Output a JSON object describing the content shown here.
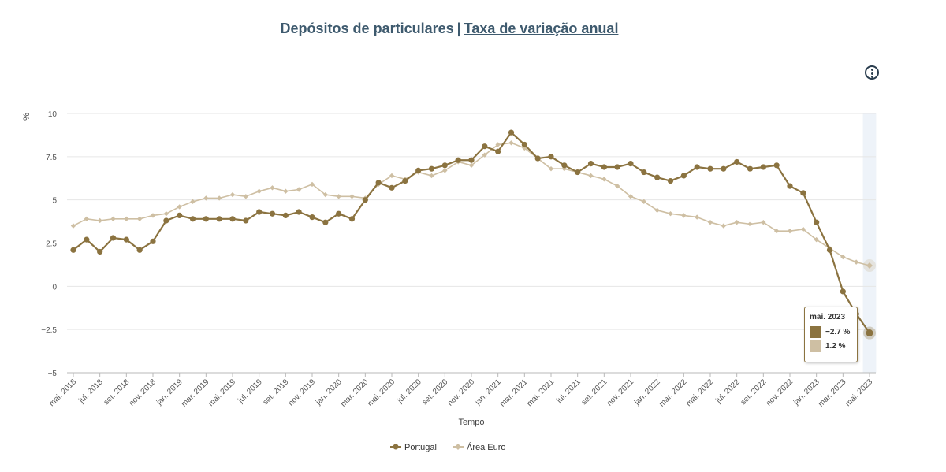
{
  "header": {
    "title_main": "Depósitos de particulares",
    "separator": "|",
    "title_link": "Taxa de variação anual"
  },
  "colors": {
    "portugal": "#8b7340",
    "area_euro": "#cebfa3",
    "title": "#3e5a6e",
    "highlight_band": "#eef3f9"
  },
  "tooltip": {
    "date": "mai. 2023",
    "portugal_value": "−2.7 %",
    "area_euro_value": "1.2 %"
  },
  "chart_data": {
    "type": "line",
    "ylabel": "%",
    "xlabel": "Tempo",
    "ylim": [
      -5,
      10
    ],
    "y_ticks": [
      10,
      7.5,
      5,
      2.5,
      0,
      -2.5,
      -5
    ],
    "y_tick_labels": [
      "10",
      "7.5",
      "5",
      "2.5",
      "0",
      "−2.5",
      "−5"
    ],
    "x_tick_labels": [
      "mai. 2018",
      "jul. 2018",
      "set. 2018",
      "nov. 2018",
      "jan. 2019",
      "mar. 2019",
      "mai. 2019",
      "jul. 2019",
      "set. 2019",
      "nov. 2019",
      "jan. 2020",
      "mar. 2020",
      "mai. 2020",
      "jul. 2020",
      "set. 2020",
      "nov. 2020",
      "jan. 2021",
      "mar. 2021",
      "mai. 2021",
      "jul. 2021",
      "set. 2021",
      "nov. 2021",
      "jan. 2022",
      "mar. 2022",
      "mai. 2022",
      "jul. 2022",
      "set. 2022",
      "nov. 2022",
      "jan. 2023",
      "mar. 2023",
      "mai. 2023"
    ],
    "grid": true,
    "legend": "bottom-center",
    "highlighted_category": "mai. 2023",
    "series": [
      {
        "name": "Portugal",
        "values": [
          2.1,
          2.7,
          2.0,
          2.8,
          2.7,
          2.1,
          2.6,
          3.8,
          4.1,
          3.9,
          3.9,
          3.9,
          3.9,
          3.8,
          4.3,
          4.2,
          4.1,
          4.3,
          4.0,
          3.7,
          4.2,
          3.9,
          5.0,
          6.0,
          5.7,
          6.1,
          6.7,
          6.8,
          7.0,
          7.3,
          7.3,
          8.1,
          7.8,
          8.9,
          8.2,
          7.4,
          7.5,
          7.0,
          6.6,
          7.1,
          6.9,
          6.9,
          7.1,
          6.6,
          6.3,
          6.1,
          6.4,
          6.9,
          6.8,
          6.8,
          7.2,
          6.8,
          6.9,
          7.0,
          5.8,
          5.4,
          3.7,
          2.1,
          -0.3,
          -1.6,
          -2.7
        ]
      },
      {
        "name": "Área Euro",
        "values": [
          3.5,
          3.9,
          3.8,
          3.9,
          3.9,
          3.9,
          4.1,
          4.2,
          4.6,
          4.9,
          5.1,
          5.1,
          5.3,
          5.2,
          5.5,
          5.7,
          5.5,
          5.6,
          5.9,
          5.3,
          5.2,
          5.2,
          5.1,
          5.9,
          6.4,
          6.2,
          6.6,
          6.4,
          6.7,
          7.2,
          7.0,
          7.6,
          8.2,
          8.3,
          8.0,
          7.4,
          6.8,
          6.8,
          6.6,
          6.4,
          6.2,
          5.8,
          5.2,
          4.9,
          4.4,
          4.2,
          4.1,
          4.0,
          3.7,
          3.5,
          3.7,
          3.6,
          3.7,
          3.2,
          3.2,
          3.3,
          2.7,
          2.2,
          1.7,
          1.4,
          1.2
        ]
      }
    ]
  }
}
